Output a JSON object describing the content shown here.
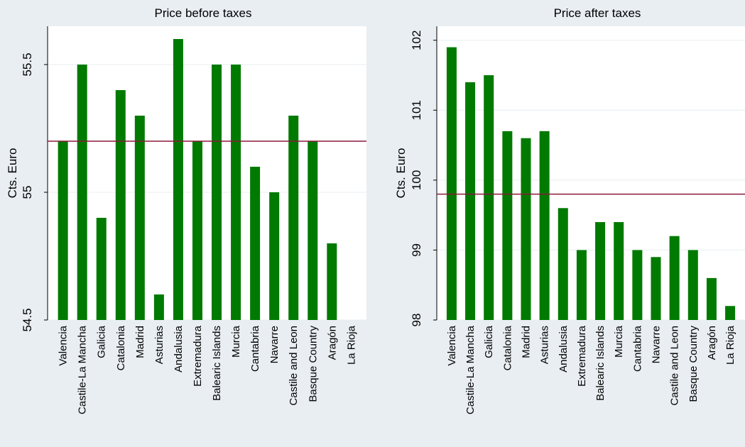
{
  "chart_data": [
    {
      "type": "bar",
      "title": "Price before taxes",
      "ylabel": "Cts. Euro",
      "xlabel": "",
      "ylim": [
        54.5,
        55.65
      ],
      "yticks": [
        54.5,
        55,
        55.5
      ],
      "ytick_labels": [
        "54.5",
        "55",
        "55.5"
      ],
      "reference_line": 55.2,
      "grid": true,
      "categories": [
        "Valencia",
        "Castile-La Mancha",
        "Galicia",
        "Catalonia",
        "Madrid",
        "Asturias",
        "Andalusia",
        "Extremadura",
        "Balearic Islands",
        "Murcia",
        "Cantabria",
        "Navarre",
        "Castile and Leon",
        "Basque Country",
        "Aragón",
        "La Rioja"
      ],
      "values": [
        55.2,
        55.5,
        54.9,
        55.4,
        55.3,
        54.6,
        55.6,
        55.2,
        55.5,
        55.5,
        55.1,
        55.0,
        55.3,
        55.2,
        54.8,
        null
      ]
    },
    {
      "type": "bar",
      "title": "Price after taxes",
      "ylabel": "Cts. Euro",
      "xlabel": "",
      "ylim": [
        98,
        102.2
      ],
      "yticks": [
        98,
        99,
        100,
        101,
        102
      ],
      "ytick_labels": [
        "98",
        "99",
        "100",
        "101",
        "102"
      ],
      "reference_line": 99.8,
      "grid": true,
      "categories": [
        "Valencia",
        "Castile-La Mancha",
        "Galicia",
        "Catalonia",
        "Madrid",
        "Asturias",
        "Andalusia",
        "Extremadura",
        "Balearic Islands",
        "Murcia",
        "Cantabria",
        "Navarre",
        "Castile and Leon",
        "Basque Country",
        "Aragón",
        "La Rioja"
      ],
      "values": [
        101.9,
        101.4,
        101.5,
        100.7,
        100.6,
        100.7,
        99.6,
        99.0,
        99.4,
        99.4,
        99.0,
        98.9,
        99.2,
        99.0,
        98.6,
        98.2
      ]
    }
  ],
  "colors": {
    "bar": "#007a00",
    "reference_line": "#8b1a3a",
    "plot_background": "#ffffff",
    "page_background": "#e8eef2",
    "grid": "#e8eef2"
  }
}
